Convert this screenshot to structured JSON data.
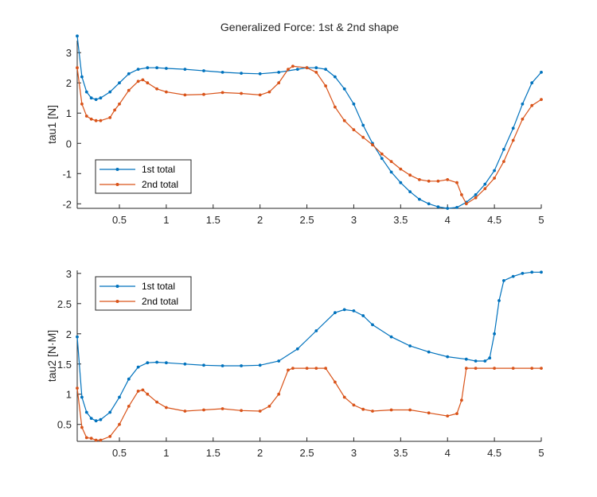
{
  "figure_title": "Generalized Force: 1st & 2nd shape",
  "colors": {
    "series1": "#0072BD",
    "series2": "#D95319",
    "axis": "#262626"
  },
  "chart_data": [
    {
      "type": "line",
      "title": "Generalized Force: 1st & 2nd shape",
      "xlabel": "",
      "ylabel": "tau1 [N]",
      "xlim": [
        0.05,
        5
      ],
      "ylim": [
        -2.15,
        3.4
      ],
      "xticks": [
        0.5,
        1,
        1.5,
        2,
        2.5,
        3,
        3.5,
        4,
        4.5,
        5
      ],
      "xtick_labels": [
        "0.5",
        "1",
        "1.5",
        "2",
        "2.5",
        "3",
        "3.5",
        "4",
        "4.5",
        "5"
      ],
      "yticks": [
        -2,
        -1,
        0,
        1,
        2,
        3
      ],
      "ytick_labels": [
        "-2",
        "-1",
        "0",
        "1",
        "2",
        "3"
      ],
      "grid": false,
      "legend_position": "bottom-left",
      "series": [
        {
          "name": "1st total",
          "x": [
            0.05,
            0.1,
            0.15,
            0.2,
            0.25,
            0.3,
            0.4,
            0.5,
            0.6,
            0.7,
            0.8,
            0.9,
            1.0,
            1.2,
            1.4,
            1.6,
            1.8,
            2.0,
            2.2,
            2.4,
            2.5,
            2.6,
            2.7,
            2.8,
            2.9,
            3.0,
            3.1,
            3.2,
            3.3,
            3.4,
            3.5,
            3.6,
            3.7,
            3.8,
            3.9,
            4.0,
            4.1,
            4.2,
            4.3,
            4.4,
            4.5,
            4.6,
            4.7,
            4.8,
            4.9,
            5.0
          ],
          "values": [
            3.55,
            2.2,
            1.7,
            1.5,
            1.45,
            1.5,
            1.7,
            2.0,
            2.3,
            2.45,
            2.5,
            2.5,
            2.48,
            2.45,
            2.4,
            2.35,
            2.32,
            2.3,
            2.35,
            2.45,
            2.5,
            2.5,
            2.45,
            2.2,
            1.8,
            1.3,
            0.6,
            0.0,
            -0.5,
            -0.95,
            -1.3,
            -1.6,
            -1.85,
            -2.0,
            -2.1,
            -2.15,
            -2.12,
            -1.95,
            -1.7,
            -1.35,
            -0.9,
            -0.2,
            0.5,
            1.3,
            2.0,
            2.35
          ]
        },
        {
          "name": "2nd total",
          "x": [
            0.05,
            0.1,
            0.15,
            0.2,
            0.25,
            0.3,
            0.4,
            0.45,
            0.5,
            0.6,
            0.7,
            0.75,
            0.8,
            0.9,
            1.0,
            1.2,
            1.4,
            1.6,
            1.8,
            2.0,
            2.1,
            2.2,
            2.3,
            2.35,
            2.5,
            2.6,
            2.7,
            2.8,
            2.9,
            3.0,
            3.1,
            3.2,
            3.3,
            3.4,
            3.5,
            3.6,
            3.7,
            3.8,
            3.9,
            4.0,
            4.1,
            4.15,
            4.2,
            4.3,
            4.4,
            4.5,
            4.6,
            4.7,
            4.8,
            4.9,
            5.0
          ],
          "values": [
            2.5,
            1.3,
            0.9,
            0.8,
            0.75,
            0.75,
            0.85,
            1.1,
            1.3,
            1.75,
            2.05,
            2.1,
            2.0,
            1.8,
            1.7,
            1.6,
            1.62,
            1.68,
            1.65,
            1.6,
            1.7,
            2.0,
            2.45,
            2.55,
            2.5,
            2.35,
            1.9,
            1.2,
            0.75,
            0.45,
            0.2,
            -0.05,
            -0.35,
            -0.6,
            -0.85,
            -1.05,
            -1.2,
            -1.25,
            -1.25,
            -1.2,
            -1.3,
            -1.7,
            -2.0,
            -1.8,
            -1.5,
            -1.15,
            -0.6,
            0.1,
            0.8,
            1.25,
            1.45
          ]
        }
      ]
    },
    {
      "type": "line",
      "title": "",
      "xlabel": "",
      "ylabel": "tau2 [N·M]",
      "xlim": [
        0.05,
        5
      ],
      "ylim": [
        0.22,
        3.05
      ],
      "xticks": [
        0.5,
        1,
        1.5,
        2,
        2.5,
        3,
        3.5,
        4,
        4.5,
        5
      ],
      "xtick_labels": [
        "0.5",
        "1",
        "1.5",
        "2",
        "2.5",
        "3",
        "3.5",
        "4",
        "4.5",
        "5"
      ],
      "yticks": [
        0.5,
        1,
        1.5,
        2,
        2.5,
        3
      ],
      "ytick_labels": [
        "0.5",
        "1",
        "1.5",
        "2",
        "2.5",
        "3"
      ],
      "grid": false,
      "legend_position": "top-left",
      "series": [
        {
          "name": "1st total",
          "x": [
            0.05,
            0.1,
            0.15,
            0.2,
            0.25,
            0.3,
            0.4,
            0.5,
            0.6,
            0.7,
            0.8,
            0.9,
            1.0,
            1.2,
            1.4,
            1.6,
            1.8,
            2.0,
            2.2,
            2.4,
            2.6,
            2.8,
            2.9,
            3.0,
            3.1,
            3.2,
            3.4,
            3.6,
            3.8,
            4.0,
            4.2,
            4.3,
            4.4,
            4.45,
            4.5,
            4.55,
            4.6,
            4.7,
            4.8,
            4.9,
            5.0
          ],
          "values": [
            1.95,
            0.95,
            0.7,
            0.6,
            0.56,
            0.58,
            0.7,
            0.95,
            1.25,
            1.45,
            1.52,
            1.53,
            1.52,
            1.5,
            1.48,
            1.47,
            1.47,
            1.48,
            1.55,
            1.75,
            2.05,
            2.35,
            2.4,
            2.38,
            2.3,
            2.15,
            1.95,
            1.8,
            1.7,
            1.62,
            1.58,
            1.55,
            1.55,
            1.6,
            2.0,
            2.55,
            2.88,
            2.95,
            3.0,
            3.02,
            3.02
          ]
        },
        {
          "name": "2nd total",
          "x": [
            0.05,
            0.1,
            0.15,
            0.2,
            0.25,
            0.3,
            0.4,
            0.5,
            0.6,
            0.7,
            0.75,
            0.8,
            0.9,
            1.0,
            1.2,
            1.4,
            1.6,
            1.8,
            2.0,
            2.1,
            2.2,
            2.3,
            2.35,
            2.5,
            2.6,
            2.7,
            2.8,
            2.9,
            3.0,
            3.1,
            3.2,
            3.4,
            3.6,
            3.8,
            4.0,
            4.1,
            4.15,
            4.2,
            4.3,
            4.5,
            4.7,
            4.9,
            5.0
          ],
          "values": [
            1.1,
            0.45,
            0.28,
            0.27,
            0.24,
            0.24,
            0.3,
            0.5,
            0.8,
            1.05,
            1.07,
            1.0,
            0.87,
            0.78,
            0.72,
            0.74,
            0.76,
            0.73,
            0.72,
            0.8,
            1.0,
            1.4,
            1.43,
            1.43,
            1.43,
            1.43,
            1.2,
            0.95,
            0.82,
            0.75,
            0.72,
            0.74,
            0.74,
            0.69,
            0.64,
            0.68,
            0.9,
            1.43,
            1.43,
            1.43,
            1.43,
            1.43,
            1.43
          ]
        }
      ]
    }
  ]
}
